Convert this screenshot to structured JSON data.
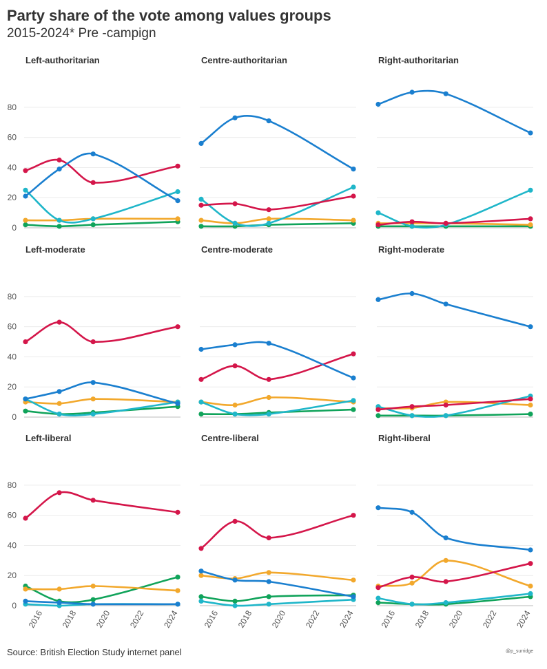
{
  "title": "Party share of the vote among values groups",
  "subtitle": "2015-2024* Pre -campign",
  "source": "Source: British Election Study internet panel",
  "credit": "@p_surridge",
  "colors": {
    "blue": "#1a7fcf",
    "red": "#d4164a",
    "yellow": "#f2a82c",
    "teal": "#1fb6c9",
    "green": "#10a35a"
  },
  "chart_data": {
    "type": "line",
    "x": [
      2015,
      2017,
      2019,
      2024
    ],
    "xlim": [
      2015,
      2024
    ],
    "ylim": [
      0,
      90
    ],
    "xticks": [
      "2016",
      "2018",
      "2020",
      "2022",
      "2024"
    ],
    "yticks": [
      "0",
      "20",
      "40",
      "60",
      "80"
    ],
    "grid": true,
    "panels": [
      {
        "title": "Left-authoritarian",
        "series": [
          {
            "color": "blue",
            "values": [
              21,
              39,
              49,
              18
            ]
          },
          {
            "color": "red",
            "values": [
              38,
              45,
              30,
              41
            ]
          },
          {
            "color": "yellow",
            "values": [
              5,
              5,
              6,
              6
            ]
          },
          {
            "color": "teal",
            "values": [
              25,
              5,
              6,
              24
            ]
          },
          {
            "color": "green",
            "values": [
              2,
              1,
              2,
              4
            ]
          }
        ]
      },
      {
        "title": "Centre-authoritarian",
        "series": [
          {
            "color": "blue",
            "values": [
              56,
              73,
              71,
              39
            ]
          },
          {
            "color": "red",
            "values": [
              15,
              16,
              12,
              21
            ]
          },
          {
            "color": "yellow",
            "values": [
              5,
              3,
              6,
              5
            ]
          },
          {
            "color": "teal",
            "values": [
              19,
              3,
              3,
              27
            ]
          },
          {
            "color": "green",
            "values": [
              1,
              1,
              2,
              3
            ]
          }
        ]
      },
      {
        "title": "Right-authoritarian",
        "series": [
          {
            "color": "blue",
            "values": [
              82,
              90,
              89,
              63
            ]
          },
          {
            "color": "red",
            "values": [
              2,
              4,
              3,
              6
            ]
          },
          {
            "color": "yellow",
            "values": [
              3,
              3,
              3,
              2
            ]
          },
          {
            "color": "teal",
            "values": [
              10,
              1,
              2,
              25
            ]
          },
          {
            "color": "green",
            "values": [
              1,
              1,
              1,
              1
            ]
          }
        ]
      },
      {
        "title": "Left-moderate",
        "series": [
          {
            "color": "blue",
            "values": [
              12,
              17,
              23,
              9
            ]
          },
          {
            "color": "red",
            "values": [
              50,
              63,
              50,
              60
            ]
          },
          {
            "color": "yellow",
            "values": [
              10,
              9,
              12,
              10
            ]
          },
          {
            "color": "teal",
            "values": [
              12,
              2,
              2,
              10
            ]
          },
          {
            "color": "green",
            "values": [
              4,
              2,
              3,
              7
            ]
          }
        ]
      },
      {
        "title": "Centre-moderate",
        "series": [
          {
            "color": "blue",
            "values": [
              45,
              48,
              49,
              26
            ]
          },
          {
            "color": "red",
            "values": [
              25,
              34,
              25,
              42
            ]
          },
          {
            "color": "yellow",
            "values": [
              10,
              8,
              13,
              10
            ]
          },
          {
            "color": "teal",
            "values": [
              10,
              2,
              2,
              11
            ]
          },
          {
            "color": "green",
            "values": [
              2,
              2,
              3,
              5
            ]
          }
        ]
      },
      {
        "title": "Right-moderate",
        "series": [
          {
            "color": "blue",
            "values": [
              78,
              82,
              75,
              60
            ]
          },
          {
            "color": "red",
            "values": [
              5,
              7,
              8,
              12
            ]
          },
          {
            "color": "yellow",
            "values": [
              6,
              6,
              10,
              8
            ]
          },
          {
            "color": "teal",
            "values": [
              7,
              1,
              1,
              14
            ]
          },
          {
            "color": "green",
            "values": [
              1,
              1,
              1,
              2
            ]
          }
        ]
      },
      {
        "title": "Left-liberal",
        "series": [
          {
            "color": "blue",
            "values": [
              3,
              2,
              1,
              1
            ]
          },
          {
            "color": "red",
            "values": [
              58,
              75,
              70,
              62
            ]
          },
          {
            "color": "yellow",
            "values": [
              11,
              11,
              13,
              10
            ]
          },
          {
            "color": "teal",
            "values": [
              1,
              0,
              1,
              1
            ]
          },
          {
            "color": "green",
            "values": [
              13,
              3,
              4,
              19
            ]
          }
        ]
      },
      {
        "title": "Centre-liberal",
        "series": [
          {
            "color": "blue",
            "values": [
              23,
              17,
              16,
              6
            ]
          },
          {
            "color": "red",
            "values": [
              38,
              56,
              45,
              60
            ]
          },
          {
            "color": "yellow",
            "values": [
              20,
              18,
              22,
              17
            ]
          },
          {
            "color": "teal",
            "values": [
              3,
              0,
              1,
              4
            ]
          },
          {
            "color": "green",
            "values": [
              6,
              3,
              6,
              7
            ]
          }
        ]
      },
      {
        "title": "Right-liberal",
        "series": [
          {
            "color": "blue",
            "values": [
              65,
              62,
              45,
              37
            ]
          },
          {
            "color": "red",
            "values": [
              12,
              19,
              16,
              28
            ]
          },
          {
            "color": "yellow",
            "values": [
              13,
              15,
              30,
              13
            ]
          },
          {
            "color": "teal",
            "values": [
              5,
              1,
              2,
              8
            ]
          },
          {
            "color": "green",
            "values": [
              2,
              1,
              1,
              6
            ]
          }
        ]
      }
    ]
  }
}
